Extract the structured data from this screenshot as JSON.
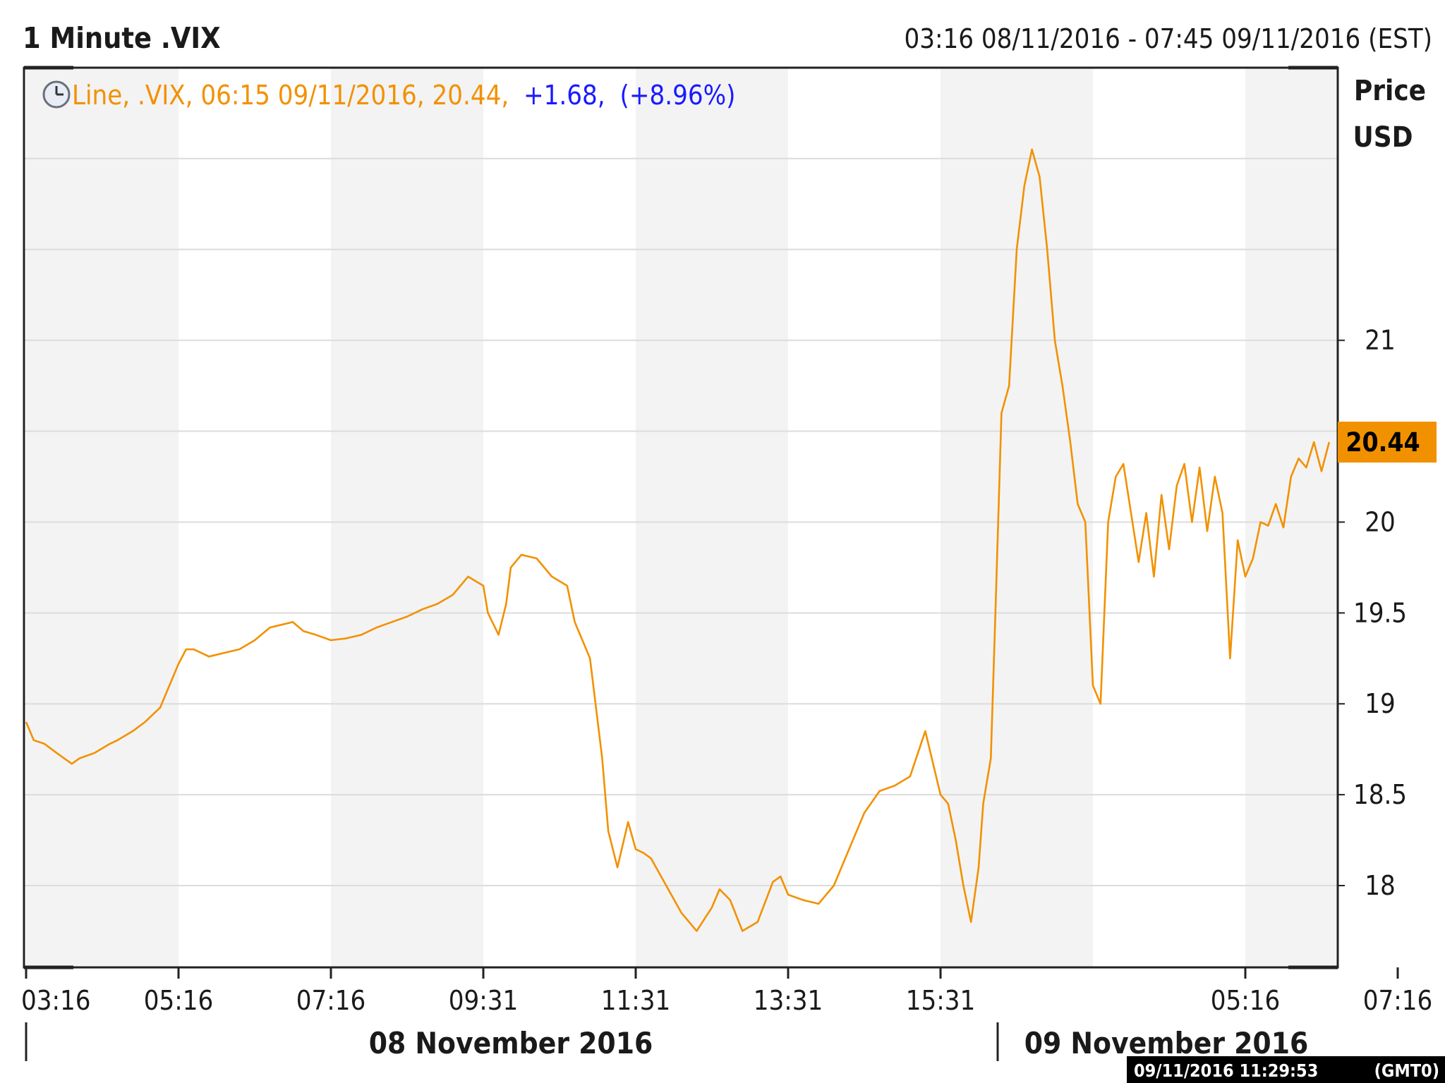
{
  "header": {
    "title": "1 Minute .VIX",
    "date_range": "03:16 08/11/2016 - 07:45 09/11/2016 (EST)"
  },
  "legend": {
    "prefix": "Line, .VIX, 06:15 09/11/2016, 20.44,",
    "change": "+1.68,",
    "change_pct": "(+8.96%)",
    "clock_icon": "clock-icon"
  },
  "y_axis_label": [
    "Price",
    "USD"
  ],
  "last_value_label": "20.44",
  "date_labels": [
    "08 November 2016",
    "09 November 2016"
  ],
  "footer": {
    "timestamp": "09/11/2016 11:29:53",
    "timezone": "(GMT0)"
  },
  "colors": {
    "line": "#f29100",
    "legend_text": "#f29100",
    "change_text": "#1a1aff",
    "last_value_bg": "#f29100",
    "band": "#f3f3f3",
    "grid": "#dcdcdc",
    "stamp_bg": "#000000"
  },
  "chart_data": {
    "type": "line",
    "title": "1 Minute .VIX",
    "ylabel": "Price USD",
    "yticks": [
      18,
      18.5,
      19,
      19.5,
      20,
      21
    ],
    "ylim": [
      17.55,
      22.5
    ],
    "x_ticks": [
      "03:16",
      "05:16",
      "07:16",
      "09:31",
      "11:31",
      "13:31",
      "15:31",
      "05:16",
      "07:16"
    ],
    "x_tick_index": [
      0,
      1,
      2,
      3,
      4,
      5,
      6,
      8,
      9
    ],
    "x_range": [
      0,
      9.5
    ],
    "grid": true,
    "series": [
      {
        "x": [
          0,
          0.05,
          0.12,
          0.2,
          0.3,
          0.35,
          0.45,
          0.55,
          0.6,
          0.7,
          0.78,
          0.88,
          0.95,
          1.0,
          1.05,
          1.1,
          1.2,
          1.3,
          1.4,
          1.5,
          1.6,
          1.75,
          1.82,
          1.9,
          2.0,
          2.1,
          2.2,
          2.3,
          2.4,
          2.5,
          2.6,
          2.7,
          2.8,
          2.9,
          3.0,
          3.03,
          3.1,
          3.15,
          3.18,
          3.25,
          3.35,
          3.45,
          3.55,
          3.6,
          3.7,
          3.78,
          3.82,
          3.88,
          3.95,
          4.0,
          4.05,
          4.1,
          4.2,
          4.3,
          4.4,
          4.5,
          4.55,
          4.62,
          4.7,
          4.8,
          4.9,
          4.95,
          5.0,
          5.1,
          5.2,
          5.3,
          5.4,
          5.5,
          5.6,
          5.7,
          5.8,
          5.9,
          6.0,
          6.05,
          6.1,
          6.15,
          6.2,
          6.25,
          6.28,
          6.3,
          6.33,
          6.36,
          6.4,
          6.45,
          6.5,
          6.55,
          6.6,
          6.65,
          6.7,
          6.75,
          6.8,
          6.85,
          6.9,
          6.95,
          7.0,
          7.05,
          7.1,
          7.15,
          7.2,
          7.25,
          7.3,
          7.35,
          7.4,
          7.45,
          7.5,
          7.55,
          7.6,
          7.65,
          7.7,
          7.75,
          7.8,
          7.85,
          7.9,
          7.95,
          8.0,
          8.05,
          8.1,
          8.15,
          8.2,
          8.25,
          8.3,
          8.35,
          8.4,
          8.45,
          8.5,
          8.55
        ],
        "values": [
          18.9,
          18.8,
          18.78,
          18.73,
          18.67,
          18.7,
          18.73,
          18.78,
          18.8,
          18.85,
          18.9,
          18.98,
          19.12,
          19.22,
          19.3,
          19.3,
          19.26,
          19.28,
          19.3,
          19.35,
          19.42,
          19.45,
          19.4,
          19.38,
          19.35,
          19.36,
          19.38,
          19.42,
          19.45,
          19.48,
          19.52,
          19.55,
          19.6,
          19.7,
          19.65,
          19.5,
          19.38,
          19.55,
          19.75,
          19.82,
          19.8,
          19.7,
          19.65,
          19.45,
          19.25,
          18.7,
          18.3,
          18.1,
          18.35,
          18.2,
          18.18,
          18.15,
          18.0,
          17.85,
          17.75,
          17.88,
          17.98,
          17.92,
          17.75,
          17.8,
          18.02,
          18.05,
          17.95,
          17.92,
          17.9,
          18.0,
          18.2,
          18.4,
          18.52,
          18.55,
          18.6,
          18.85,
          18.5,
          18.45,
          18.25,
          18.0,
          17.8,
          18.1,
          18.45,
          18.55,
          18.7,
          19.5,
          20.6,
          20.75,
          21.5,
          21.85,
          22.05,
          21.9,
          21.5,
          21.0,
          20.75,
          20.45,
          20.1,
          20.0,
          19.1,
          19.0,
          20.0,
          20.25,
          20.32,
          20.05,
          19.78,
          20.05,
          19.7,
          20.15,
          19.85,
          20.2,
          20.32,
          20.0,
          20.3,
          19.95,
          20.25,
          20.05,
          19.25,
          19.9,
          19.7,
          19.8,
          20.0,
          19.98,
          20.1,
          19.97,
          20.25,
          20.35,
          20.3,
          20.44,
          20.28,
          20.44
        ]
      }
    ]
  }
}
